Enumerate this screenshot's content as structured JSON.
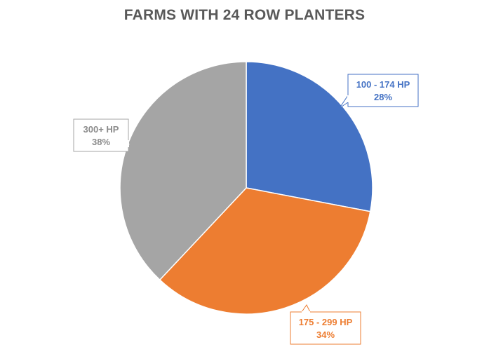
{
  "chart_data": {
    "type": "pie",
    "title": "FARMS WITH 24 ROW PLANTERS",
    "slices": [
      {
        "label": "100 - 174 HP",
        "value": 28,
        "value_label": "28%",
        "color": "#4472C4"
      },
      {
        "label": "175 - 299 HP",
        "value": 34,
        "value_label": "34%",
        "color": "#ED7D31"
      },
      {
        "label": "300+ HP",
        "value": 38,
        "value_label": "38%",
        "color": "#A5A5A5"
      }
    ],
    "start_angle": "12 o'clock",
    "direction": "clockwise",
    "legend": "none",
    "data_labels": "callouts"
  }
}
